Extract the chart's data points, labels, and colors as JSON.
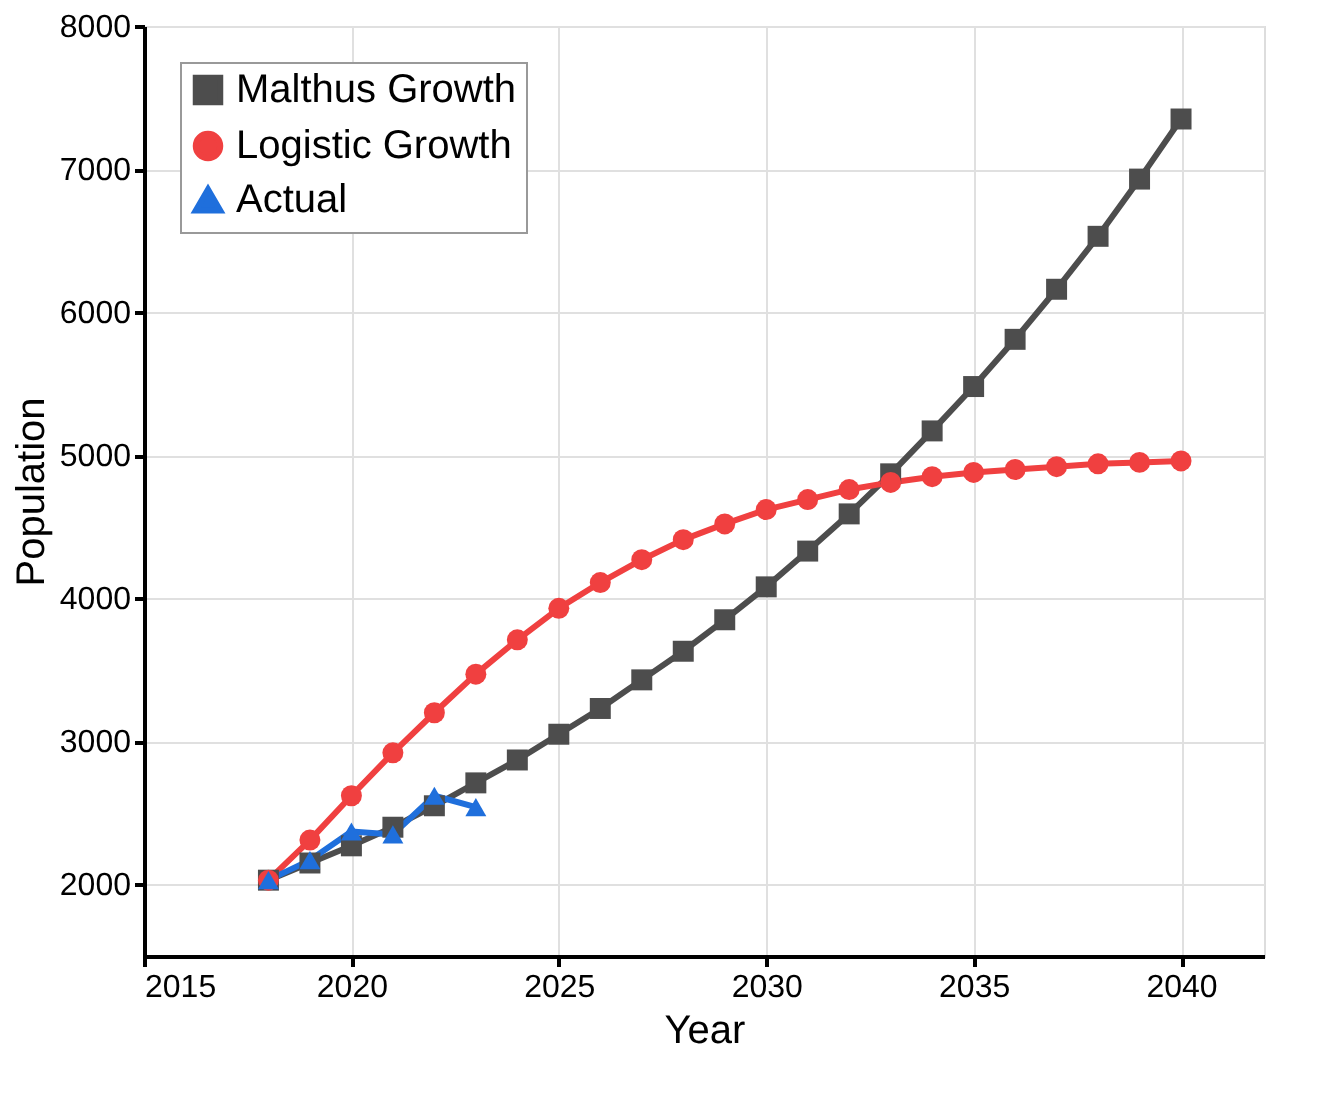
{
  "chart_data": {
    "type": "line",
    "xlabel": "Year",
    "ylabel": "Population",
    "xlim": [
      2015,
      2042
    ],
    "xticks": [
      2015,
      2020,
      2025,
      2030,
      2035,
      2040
    ],
    "ylim": [
      1500,
      8000
    ],
    "yticks": [
      2000,
      3000,
      4000,
      5000,
      6000,
      7000,
      8000
    ],
    "grid": true,
    "legend": "top left",
    "line_style": "solid",
    "series": [
      {
        "name": "Malthus Growth",
        "color": "#4d4d4d",
        "marker": "square",
        "x": [
          2018,
          2019,
          2020,
          2021,
          2022,
          2023,
          2024,
          2025,
          2026,
          2027,
          2028,
          2029,
          2030,
          2031,
          2032,
          2033,
          2034,
          2035,
          2036,
          2037,
          2038,
          2039,
          2040
        ],
        "values": [
          2030,
          2150,
          2270,
          2400,
          2550,
          2710,
          2870,
          3050,
          3230,
          3430,
          3630,
          3850,
          4080,
          4330,
          4590,
          4870,
          5170,
          5480,
          5810,
          6160,
          6530,
          6930,
          7350
        ]
      },
      {
        "name": "Logistic Growth",
        "color": "#f04040",
        "marker": "circle",
        "x": [
          2018,
          2019,
          2020,
          2021,
          2022,
          2023,
          2024,
          2025,
          2026,
          2027,
          2028,
          2029,
          2030,
          2031,
          2032,
          2033,
          2034,
          2035,
          2036,
          2037,
          2038,
          2039,
          2040
        ],
        "values": [
          2030,
          2310,
          2620,
          2920,
          3200,
          3470,
          3710,
          3930,
          4110,
          4270,
          4410,
          4520,
          4620,
          4690,
          4760,
          4810,
          4850,
          4880,
          4900,
          4920,
          4940,
          4950,
          4960
        ]
      },
      {
        "name": "Actual",
        "color": "#1f6fdc",
        "marker": "triangle",
        "x": [
          2018,
          2019,
          2020,
          2021,
          2022,
          2023
        ],
        "values": [
          2030,
          2170,
          2370,
          2350,
          2620,
          2540
        ]
      }
    ]
  }
}
